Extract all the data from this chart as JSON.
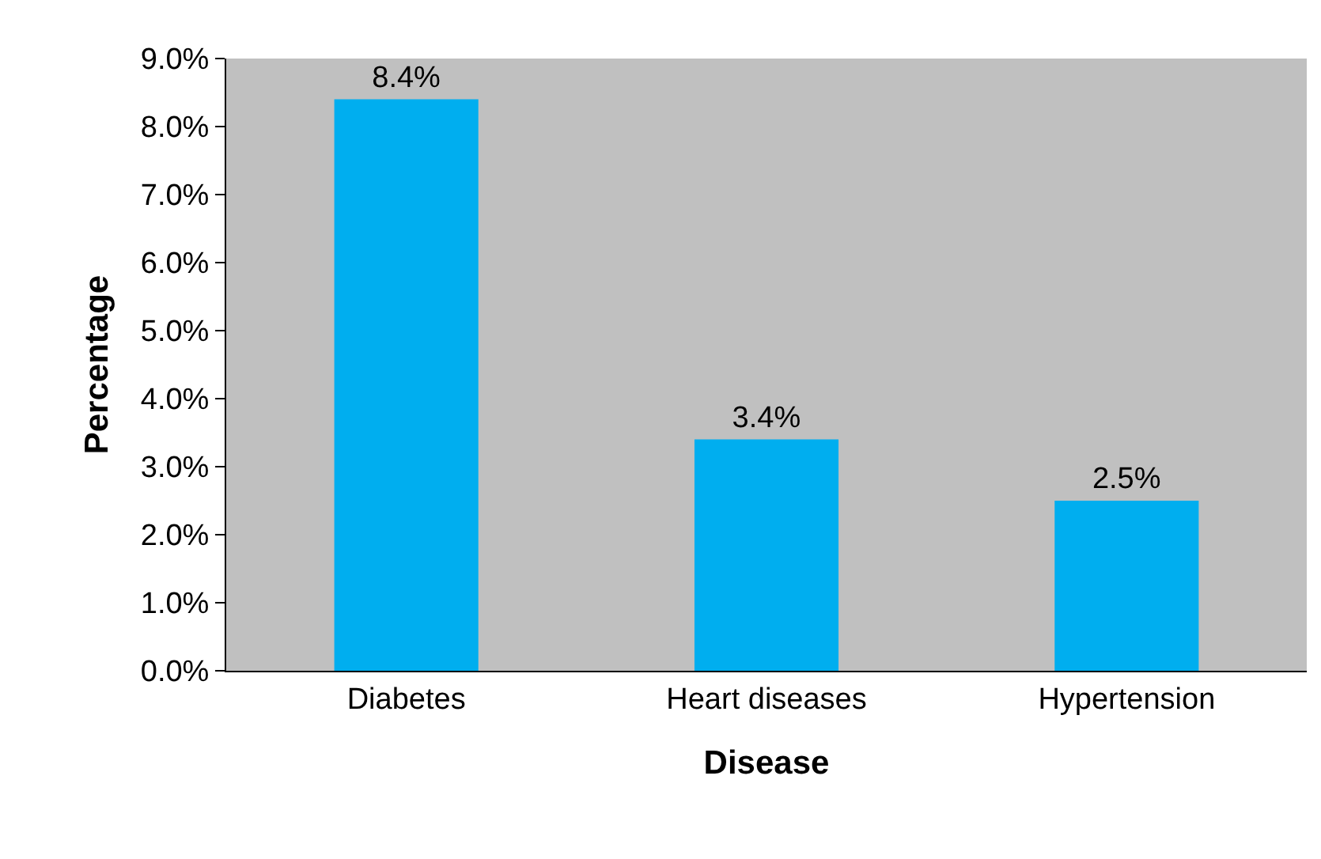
{
  "chart_data": {
    "type": "bar",
    "xlabel": "Disease",
    "ylabel": "Percentage",
    "categories": [
      "Diabetes",
      "Heart diseases",
      "Hypertension"
    ],
    "values": [
      8.4,
      3.4,
      2.5
    ],
    "value_labels": [
      "8.4%",
      "3.4%",
      "2.5%"
    ],
    "color": "#00aeef",
    "ylim": [
      0,
      9
    ],
    "yticks": [
      {
        "value": 0,
        "label": "0.0%"
      },
      {
        "value": 1,
        "label": "1.0%"
      },
      {
        "value": 2,
        "label": "2.0%"
      },
      {
        "value": 3,
        "label": "3.0%"
      },
      {
        "value": 4,
        "label": "4.0%"
      },
      {
        "value": 5,
        "label": "5.0%"
      },
      {
        "value": 6,
        "label": "6.0%"
      },
      {
        "value": 7,
        "label": "7.0%"
      },
      {
        "value": 8,
        "label": "8.0%"
      },
      {
        "value": 9,
        "label": "9.0%"
      }
    ],
    "grid": false
  }
}
